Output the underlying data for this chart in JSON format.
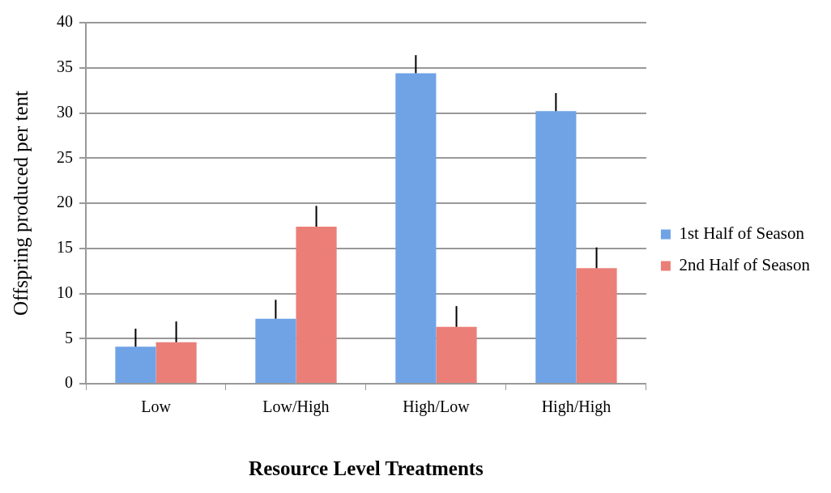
{
  "chart_data": {
    "type": "bar",
    "xlabel": "Resource Level Treatments",
    "ylabel": "Offspring produced per tent",
    "categories": [
      "Low",
      "Low/High",
      "High/Low",
      "High/High"
    ],
    "series": [
      {
        "name": "1st Half of Season",
        "color": "#6fa3e6",
        "values": [
          4.1,
          7.2,
          34.4,
          30.2
        ],
        "errors": [
          [
            4.1,
            6.1
          ],
          [
            7.2,
            9.3
          ],
          [
            34.4,
            36.4
          ],
          [
            30.2,
            32.2
          ]
        ]
      },
      {
        "name": "2nd Half of Season",
        "color": "#eb7f78",
        "values": [
          4.6,
          17.4,
          6.3,
          12.8
        ],
        "errors": [
          [
            4.6,
            6.9
          ],
          [
            17.4,
            19.7
          ],
          [
            6.3,
            8.6
          ],
          [
            12.8,
            15.1
          ]
        ]
      }
    ],
    "ylim": [
      0,
      40
    ],
    "yticks": [
      0,
      5,
      10,
      15,
      20,
      25,
      30,
      35,
      40
    ],
    "grid": "y",
    "legend": "right"
  }
}
